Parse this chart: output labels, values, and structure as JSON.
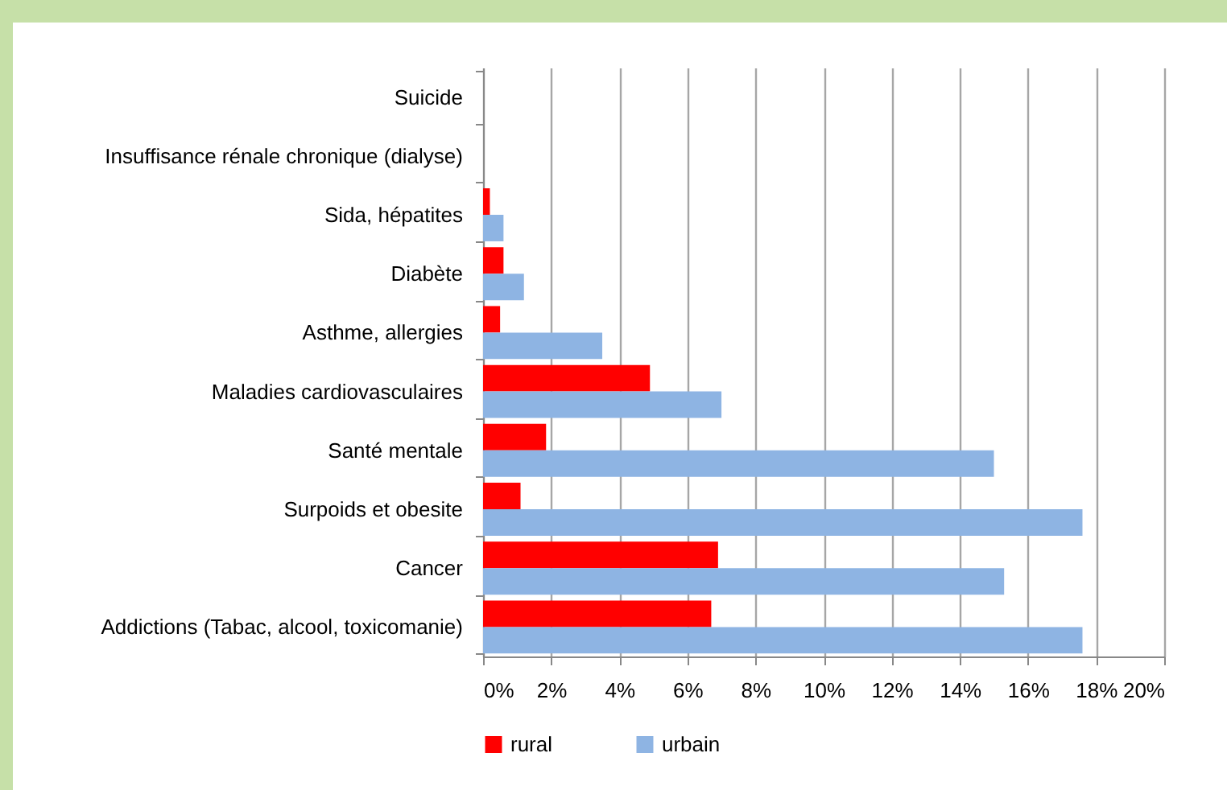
{
  "chart_data": {
    "type": "bar",
    "orientation": "horizontal",
    "categories": [
      "Suicide",
      "Insuffisance rénale chronique (dialyse)",
      "Sida, hépatites",
      "Diabète",
      "Asthme, allergies",
      "Maladies cardiovasculaires",
      "Santé mentale",
      "Surpoids et obesite",
      "Cancer",
      "Addictions (Tabac,  alcool, toxicomanie)"
    ],
    "series": [
      {
        "name": "rural",
        "color": "#ff0000",
        "values": [
          0,
          0,
          0.2,
          0.6,
          0.5,
          4.9,
          1.85,
          1.1,
          6.9,
          6.7
        ]
      },
      {
        "name": "urbain",
        "color": "#8eb4e3",
        "values": [
          0,
          0,
          0.6,
          1.2,
          3.5,
          7.0,
          15.0,
          17.6,
          15.3,
          17.6
        ]
      }
    ],
    "xlim": [
      0,
      20
    ],
    "xticks": [
      {
        "value": 0,
        "label": "0%"
      },
      {
        "value": 2,
        "label": "2%"
      },
      {
        "value": 4,
        "label": "4%"
      },
      {
        "value": 6,
        "label": "6%"
      },
      {
        "value": 8,
        "label": "8%"
      },
      {
        "value": 10,
        "label": "10%"
      },
      {
        "value": 12,
        "label": "12%"
      },
      {
        "value": 14,
        "label": "14%"
      },
      {
        "value": 16,
        "label": "16%"
      },
      {
        "value": 18,
        "label": "18%"
      },
      {
        "value": 20,
        "label": "20%"
      }
    ],
    "grid": "x",
    "legend": "bottom"
  }
}
